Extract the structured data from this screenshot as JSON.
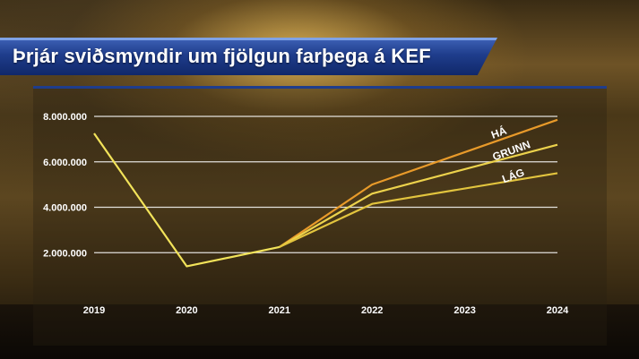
{
  "title": "Þrjár sviðsmyndir um fjölgun farþega á KEF",
  "chart_data": {
    "type": "line",
    "title": "Þrjár sviðsmyndir um fjölgun farþega á KEF",
    "xlabel": "",
    "ylabel": "",
    "categories": [
      "2019",
      "2020",
      "2021",
      "2022",
      "2023",
      "2024"
    ],
    "ylim": [
      0,
      8000000
    ],
    "y_ticks": [
      "2.000.000",
      "4.000.000",
      "6.000.000",
      "8.000.000"
    ],
    "grid": true,
    "series": [
      {
        "name": "HÁ",
        "color": "#e89a2a",
        "x": [
          "2021",
          "2022",
          "2024"
        ],
        "values": [
          2250000,
          5000000,
          7850000
        ]
      },
      {
        "name": "GRUNN",
        "color": "#ecd24c",
        "x": [
          "2021",
          "2022",
          "2024"
        ],
        "values": [
          2250000,
          4600000,
          6750000
        ]
      },
      {
        "name": "LÁG",
        "color": "#e2c43e",
        "x": [
          "2021",
          "2022",
          "2024"
        ],
        "values": [
          2250000,
          4150000,
          5500000
        ]
      },
      {
        "name": "",
        "color": "#f2e35a",
        "x": [
          "2019",
          "2020",
          "2021"
        ],
        "values": [
          7250000,
          1400000,
          2250000
        ]
      }
    ]
  }
}
